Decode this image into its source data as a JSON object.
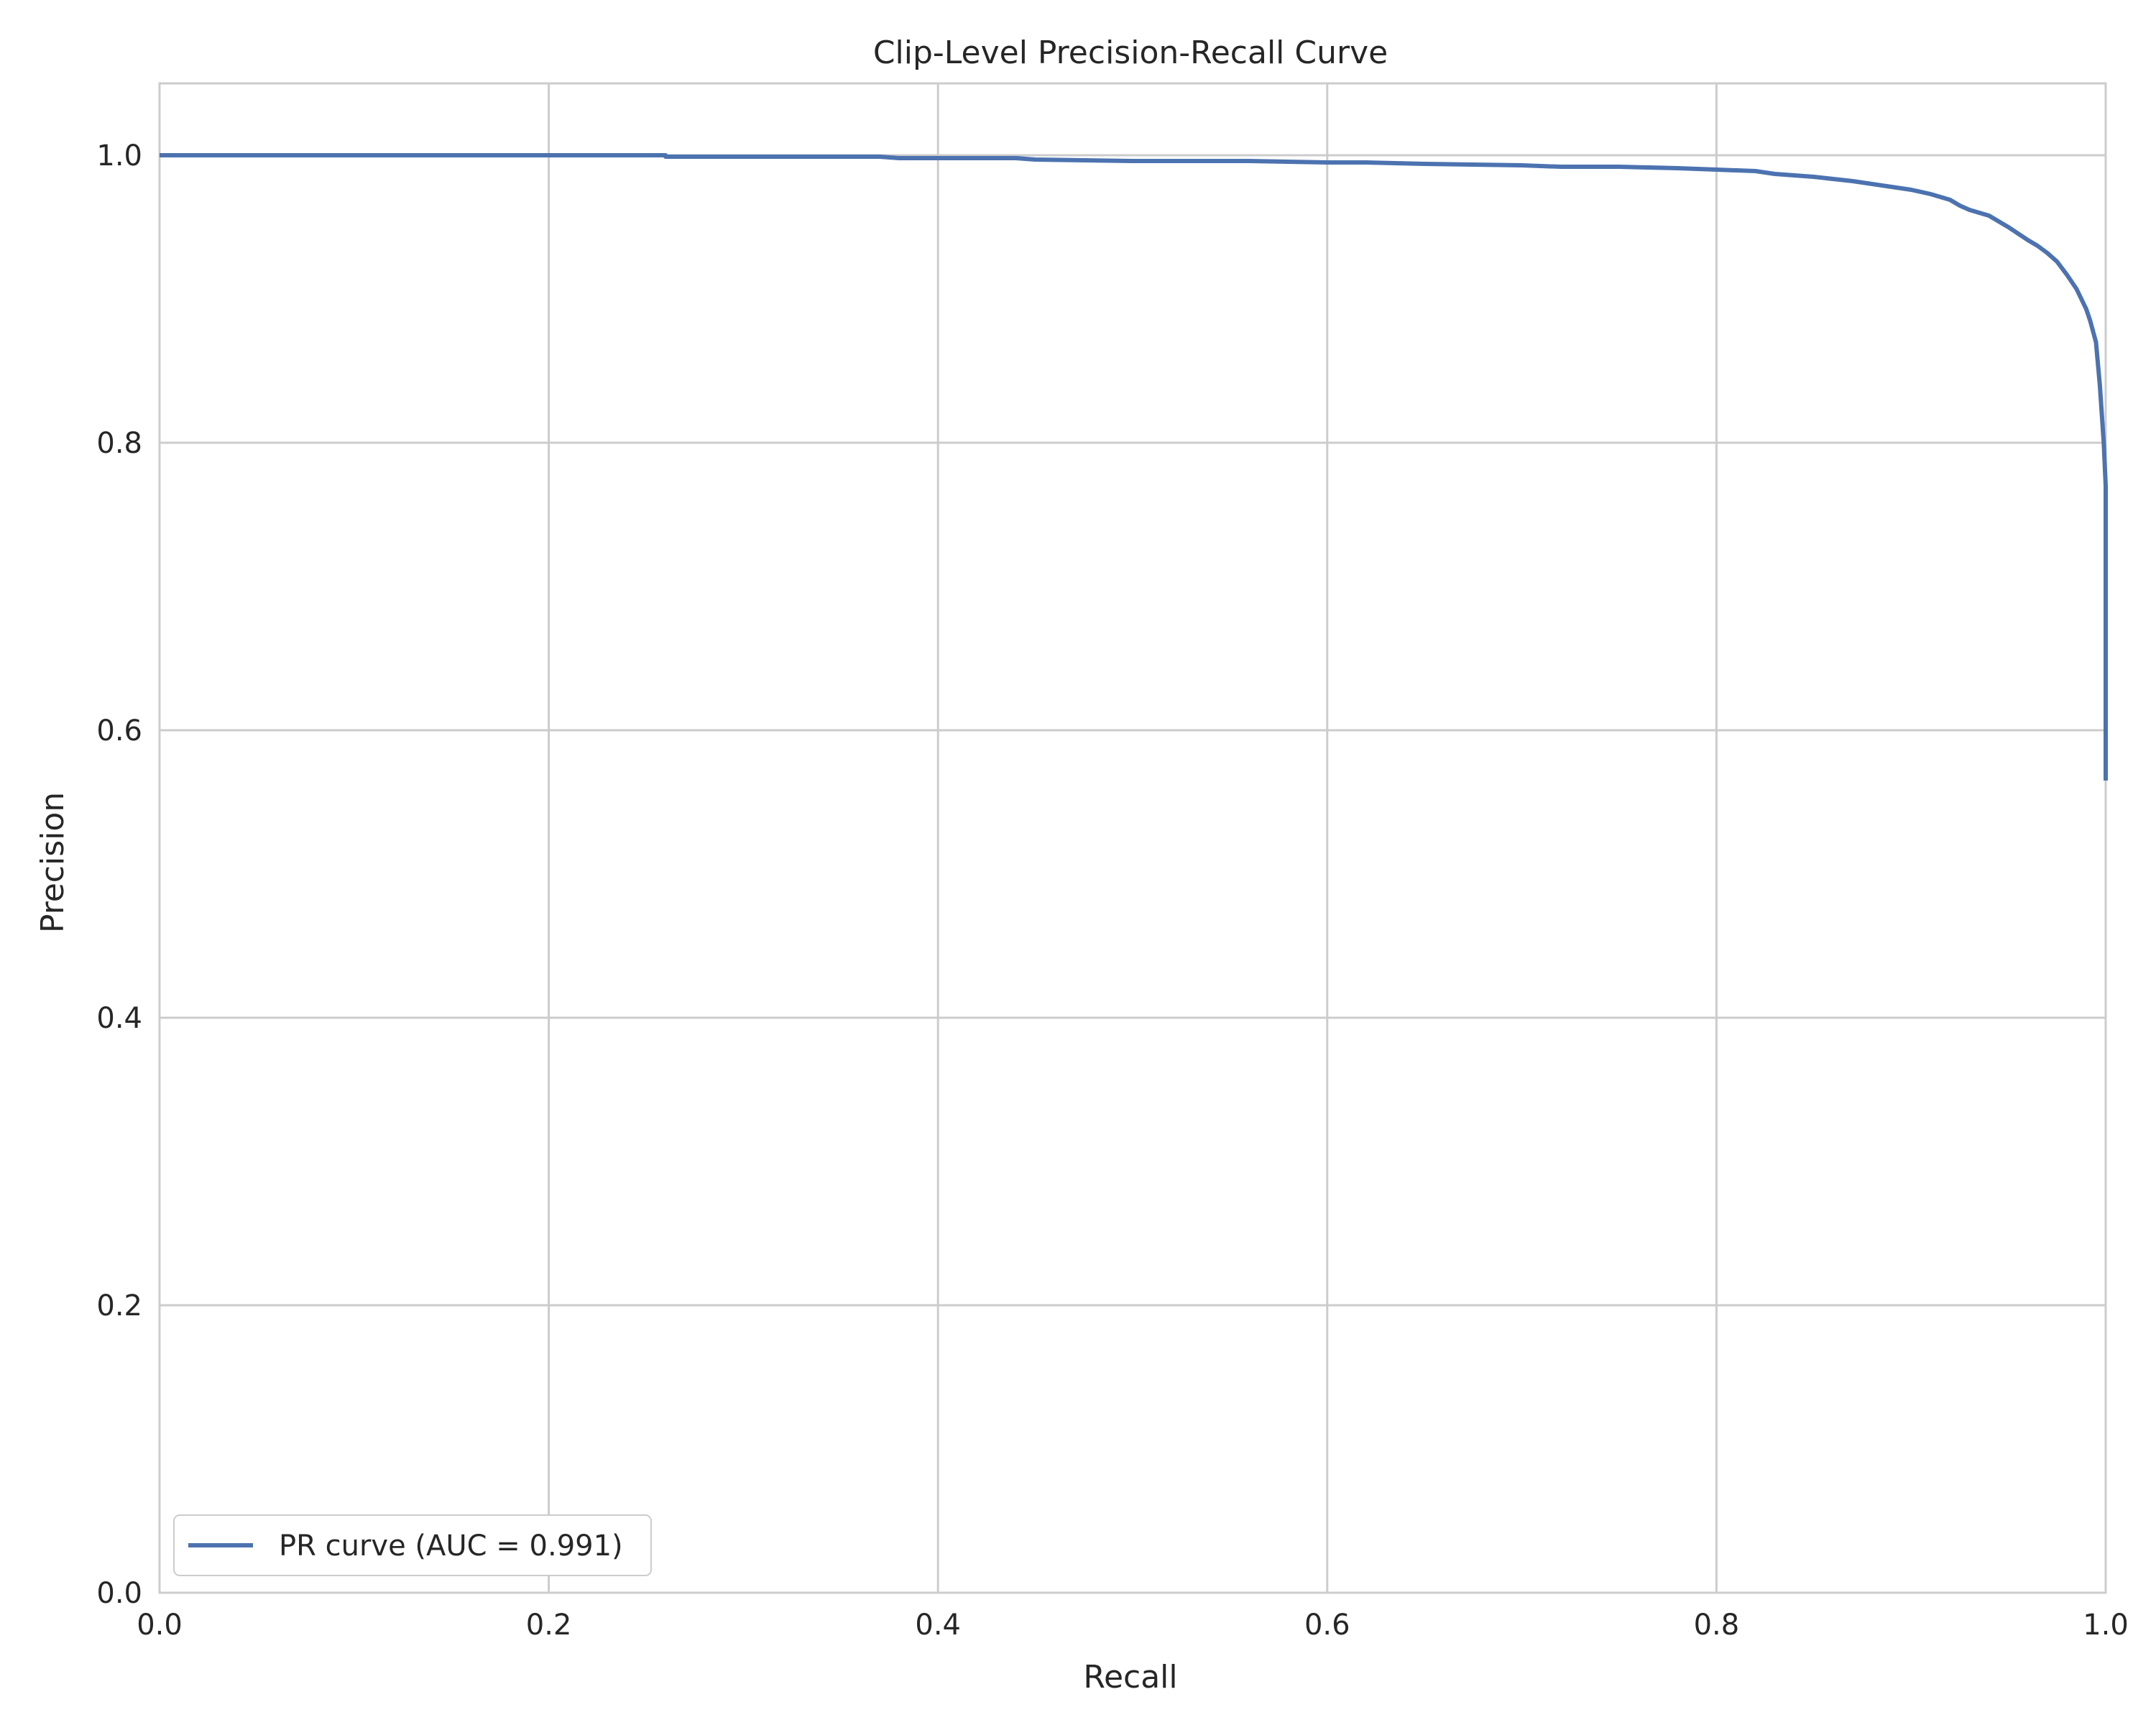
{
  "chart_data": {
    "type": "line",
    "title": "Clip-Level Precision-Recall Curve",
    "xlabel": "Recall",
    "ylabel": "Precision",
    "xlim": [
      0.0,
      1.0
    ],
    "ylim": [
      0.0,
      1.05
    ],
    "xticks": [
      "0.0",
      "0.2",
      "0.4",
      "0.6",
      "0.8",
      "1.0"
    ],
    "yticks": [
      "0.0",
      "0.2",
      "0.4",
      "0.6",
      "0.8",
      "1.0"
    ],
    "grid": true,
    "legend_position": "lower-left",
    "colors": {
      "series": "#4c72b0",
      "grid": "#cccccc",
      "axes": "#cccccc"
    },
    "series": [
      {
        "name": "PR curve (AUC = 0.991)",
        "x": [
          0.0,
          0.1,
          0.2,
          0.26,
          0.26,
          0.37,
          0.38,
          0.44,
          0.45,
          0.5,
          0.56,
          0.6,
          0.62,
          0.65,
          0.7,
          0.72,
          0.75,
          0.78,
          0.8,
          0.82,
          0.83,
          0.85,
          0.87,
          0.88,
          0.9,
          0.91,
          0.92,
          0.925,
          0.93,
          0.94,
          0.95,
          0.96,
          0.965,
          0.97,
          0.975,
          0.98,
          0.985,
          0.99,
          0.992,
          0.995,
          0.996,
          0.997,
          0.998,
          0.999,
          1.0,
          1.0,
          1.0,
          1.0
        ],
        "y": [
          1.0,
          1.0,
          1.0,
          1.0,
          0.999,
          0.999,
          0.998,
          0.998,
          0.997,
          0.996,
          0.996,
          0.995,
          0.995,
          0.994,
          0.993,
          0.992,
          0.992,
          0.991,
          0.99,
          0.989,
          0.987,
          0.985,
          0.982,
          0.98,
          0.976,
          0.973,
          0.969,
          0.965,
          0.962,
          0.958,
          0.95,
          0.941,
          0.937,
          0.932,
          0.926,
          0.917,
          0.907,
          0.893,
          0.885,
          0.87,
          0.855,
          0.84,
          0.82,
          0.8,
          0.77,
          0.73,
          0.65,
          0.565
        ]
      }
    ]
  }
}
